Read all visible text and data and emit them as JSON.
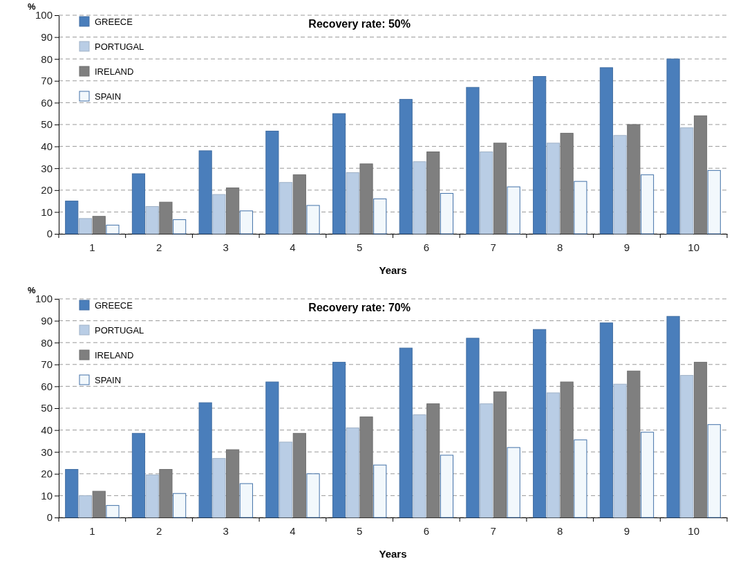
{
  "chart_data": [
    {
      "type": "bar",
      "title": "Recovery rate: 50%",
      "ylabel": "%",
      "xlabel": "Years",
      "categories": [
        "1",
        "2",
        "3",
        "4",
        "5",
        "6",
        "7",
        "8",
        "9",
        "10"
      ],
      "ylim": [
        0,
        100
      ],
      "yticks": [
        0,
        10,
        20,
        30,
        40,
        50,
        60,
        70,
        80,
        90,
        100
      ],
      "grid": "y",
      "legend": "top left",
      "series": [
        {
          "name": "GREECE",
          "color": "#4a7ebb",
          "values": [
            15,
            27.5,
            38,
            47,
            55,
            61.5,
            67,
            72,
            76,
            80
          ]
        },
        {
          "name": "PORTUGAL",
          "color": "#b9cde5",
          "values": [
            7,
            12.5,
            18,
            23.5,
            28,
            33,
            37.5,
            41.5,
            45,
            48.5
          ]
        },
        {
          "name": "IRELAND",
          "color": "#7f7f7f",
          "values": [
            8,
            14.5,
            21,
            27,
            32,
            37.5,
            41.5,
            46,
            50,
            54
          ]
        },
        {
          "name": "SPAIN",
          "color": "#f2f8fc",
          "values": [
            4,
            6.5,
            10.5,
            13,
            16,
            18.5,
            21.5,
            24,
            27,
            29
          ]
        }
      ]
    },
    {
      "type": "bar",
      "title": "Recovery rate: 70%",
      "ylabel": "%",
      "xlabel": "Years",
      "categories": [
        "1",
        "2",
        "3",
        "4",
        "5",
        "6",
        "7",
        "8",
        "9",
        "10"
      ],
      "ylim": [
        0,
        100
      ],
      "yticks": [
        0,
        10,
        20,
        30,
        40,
        50,
        60,
        70,
        80,
        90,
        100
      ],
      "grid": "y",
      "legend": "top left",
      "series": [
        {
          "name": "GREECE",
          "color": "#4a7ebb",
          "values": [
            22,
            38.5,
            52.5,
            62,
            71,
            77.5,
            82,
            86,
            89,
            92
          ]
        },
        {
          "name": "PORTUGAL",
          "color": "#b9cde5",
          "values": [
            10,
            19.5,
            27,
            34.5,
            41,
            47,
            52,
            57,
            61,
            65
          ]
        },
        {
          "name": "IRELAND",
          "color": "#7f7f7f",
          "values": [
            12,
            22,
            31,
            38.5,
            46,
            52,
            57.5,
            62,
            67,
            71
          ]
        },
        {
          "name": "SPAIN",
          "color": "#f2f8fc",
          "values": [
            5.5,
            11,
            15.5,
            20,
            24,
            28.5,
            32,
            35.5,
            39,
            42.5
          ]
        }
      ]
    }
  ]
}
